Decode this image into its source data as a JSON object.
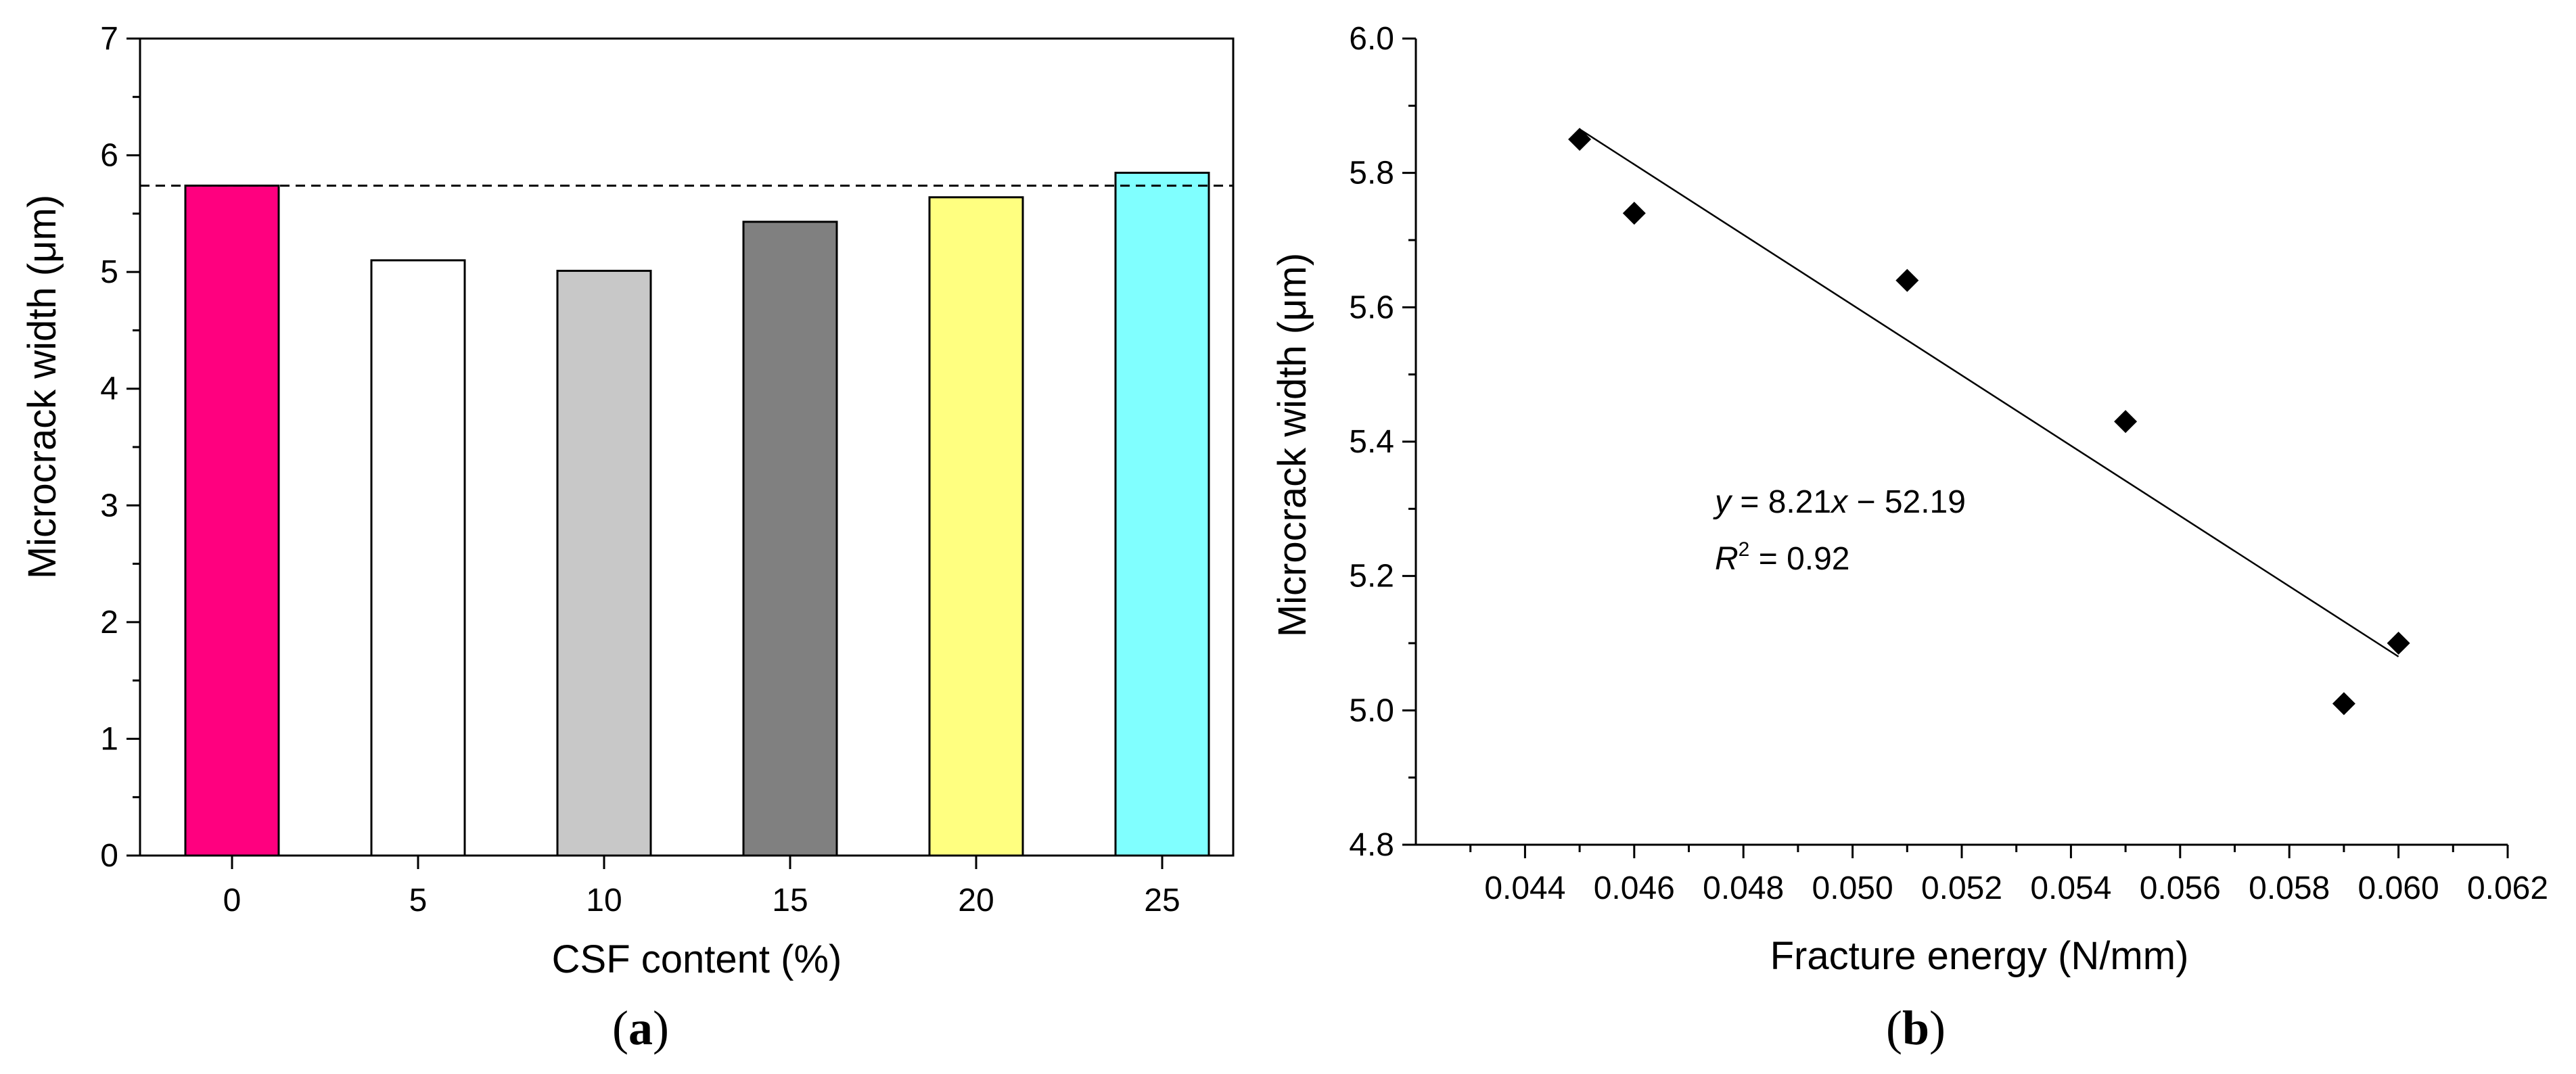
{
  "chart_data": [
    {
      "type": "bar",
      "panel_label_prefix": "(",
      "panel_label": "a",
      "panel_label_suffix": ")",
      "xlabel": "CSF content (%)",
      "ylabel": "Microcrack width (μm)",
      "categories": [
        "0",
        "5",
        "10",
        "15",
        "20",
        "25"
      ],
      "values": [
        5.74,
        5.1,
        5.01,
        5.43,
        5.64,
        5.85
      ],
      "colors": [
        "#ff007f",
        "#ffffff",
        "#c8c8c8",
        "#808080",
        "#ffff80",
        "#80ffff"
      ],
      "ylim": [
        0,
        7
      ],
      "yticks": [
        "0",
        "1",
        "2",
        "3",
        "4",
        "5",
        "6",
        "7"
      ],
      "reference_line": {
        "value": 5.74,
        "style": "dashed"
      }
    },
    {
      "type": "scatter",
      "panel_label_prefix": "(",
      "panel_label": "b",
      "panel_label_suffix": ")",
      "xlabel": "Fracture energy (N/mm)",
      "ylabel": "Microcrack width (μm)",
      "points": [
        {
          "x": 0.045,
          "y": 5.85
        },
        {
          "x": 0.046,
          "y": 5.74
        },
        {
          "x": 0.051,
          "y": 5.64
        },
        {
          "x": 0.055,
          "y": 5.43
        },
        {
          "x": 0.059,
          "y": 5.01
        },
        {
          "x": 0.06,
          "y": 5.1
        }
      ],
      "xlim": [
        0.042,
        0.062
      ],
      "ylim": [
        4.8,
        6.0
      ],
      "xticks": [
        "0.044",
        "0.046",
        "0.048",
        "0.050",
        "0.052",
        "0.054",
        "0.056",
        "0.058",
        "0.060",
        "0.062"
      ],
      "yticks": [
        "4.8",
        "5.0",
        "5.2",
        "5.4",
        "5.6",
        "5.8",
        "6.0"
      ],
      "fit": {
        "x_start": 0.045,
        "y_start": 5.865,
        "x_end": 0.06,
        "y_end": 5.08,
        "equation_y": "y",
        "equation_eq": " = 8.21",
        "equation_x": "x",
        "equation_rest": " − 52.19",
        "r2_R": "R",
        "r2_sup": "2",
        "r2_rest": " = 0.92"
      }
    }
  ]
}
